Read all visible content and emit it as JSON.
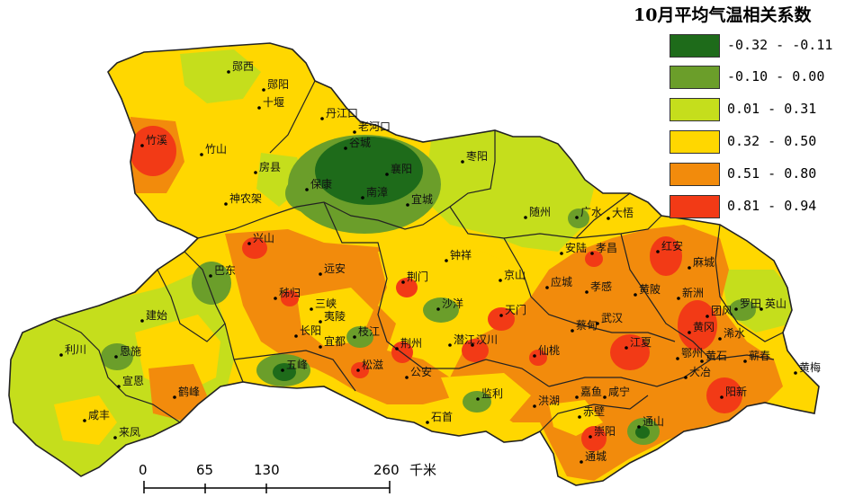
{
  "legend": {
    "title": "10月平均气温相关系数",
    "classes": [
      {
        "label": "-0.32 - -0.11",
        "color": "#1e6b1a"
      },
      {
        "label": "-0.10 - 0.00",
        "color": "#6b9e2a"
      },
      {
        "label": "0.01 - 0.31",
        "color": "#c5de1c"
      },
      {
        "label": "0.32 - 0.50",
        "color": "#ffd700"
      },
      {
        "label": "0.51 - 0.80",
        "color": "#f28b0c"
      },
      {
        "label": "0.81 - 0.94",
        "color": "#f23a16"
      }
    ]
  },
  "scale": {
    "ticks": [
      "0",
      "65",
      "130",
      "260"
    ],
    "unit": "千米"
  },
  "places": [
    {
      "name": "郧西"
    },
    {
      "name": "郧阳"
    },
    {
      "name": "十堰"
    },
    {
      "name": "丹江口"
    },
    {
      "name": "老河口"
    },
    {
      "name": "竹溪"
    },
    {
      "name": "竹山"
    },
    {
      "name": "房县"
    },
    {
      "name": "谷城"
    },
    {
      "name": "襄阳"
    },
    {
      "name": "枣阳"
    },
    {
      "name": "保康"
    },
    {
      "name": "南漳"
    },
    {
      "name": "宜城"
    },
    {
      "name": "神农架"
    },
    {
      "name": "随州"
    },
    {
      "name": "广水"
    },
    {
      "name": "大悟"
    },
    {
      "name": "兴山"
    },
    {
      "name": "远安"
    },
    {
      "name": "钟祥"
    },
    {
      "name": "京山"
    },
    {
      "name": "安陆"
    },
    {
      "name": "孝昌"
    },
    {
      "name": "红安"
    },
    {
      "name": "麻城"
    },
    {
      "name": "巴东"
    },
    {
      "name": "秭归"
    },
    {
      "name": "荆门"
    },
    {
      "name": "三峡"
    },
    {
      "name": "夷陵"
    },
    {
      "name": "沙洋"
    },
    {
      "name": "天门"
    },
    {
      "name": "应城"
    },
    {
      "name": "孝感"
    },
    {
      "name": "黄陂"
    },
    {
      "name": "新洲"
    },
    {
      "name": "罗田"
    },
    {
      "name": "英山"
    },
    {
      "name": "建始"
    },
    {
      "name": "利川"
    },
    {
      "name": "恩施"
    },
    {
      "name": "长阳"
    },
    {
      "name": "宜都"
    },
    {
      "name": "枝江"
    },
    {
      "name": "荆州"
    },
    {
      "name": "潜江"
    },
    {
      "name": "汉川"
    },
    {
      "name": "仙桃"
    },
    {
      "name": "蔡甸"
    },
    {
      "name": "武汉"
    },
    {
      "name": "团风"
    },
    {
      "name": "黄冈"
    },
    {
      "name": "浠水"
    },
    {
      "name": "江夏"
    },
    {
      "name": "鄂州"
    },
    {
      "name": "黄石"
    },
    {
      "name": "蕲春"
    },
    {
      "name": "五峰"
    },
    {
      "name": "松滋"
    },
    {
      "name": "公安"
    },
    {
      "name": "大冶"
    },
    {
      "name": "宣恩"
    },
    {
      "name": "鹤峰"
    },
    {
      "name": "监利"
    },
    {
      "name": "洪湖"
    },
    {
      "name": "嘉鱼"
    },
    {
      "name": "咸宁"
    },
    {
      "name": "阳新"
    },
    {
      "name": "黄梅"
    },
    {
      "name": "咸丰"
    },
    {
      "name": "来凤"
    },
    {
      "name": "石首"
    },
    {
      "name": "赤壁"
    },
    {
      "name": "通山"
    },
    {
      "name": "崇阳"
    },
    {
      "name": "通城"
    }
  ]
}
